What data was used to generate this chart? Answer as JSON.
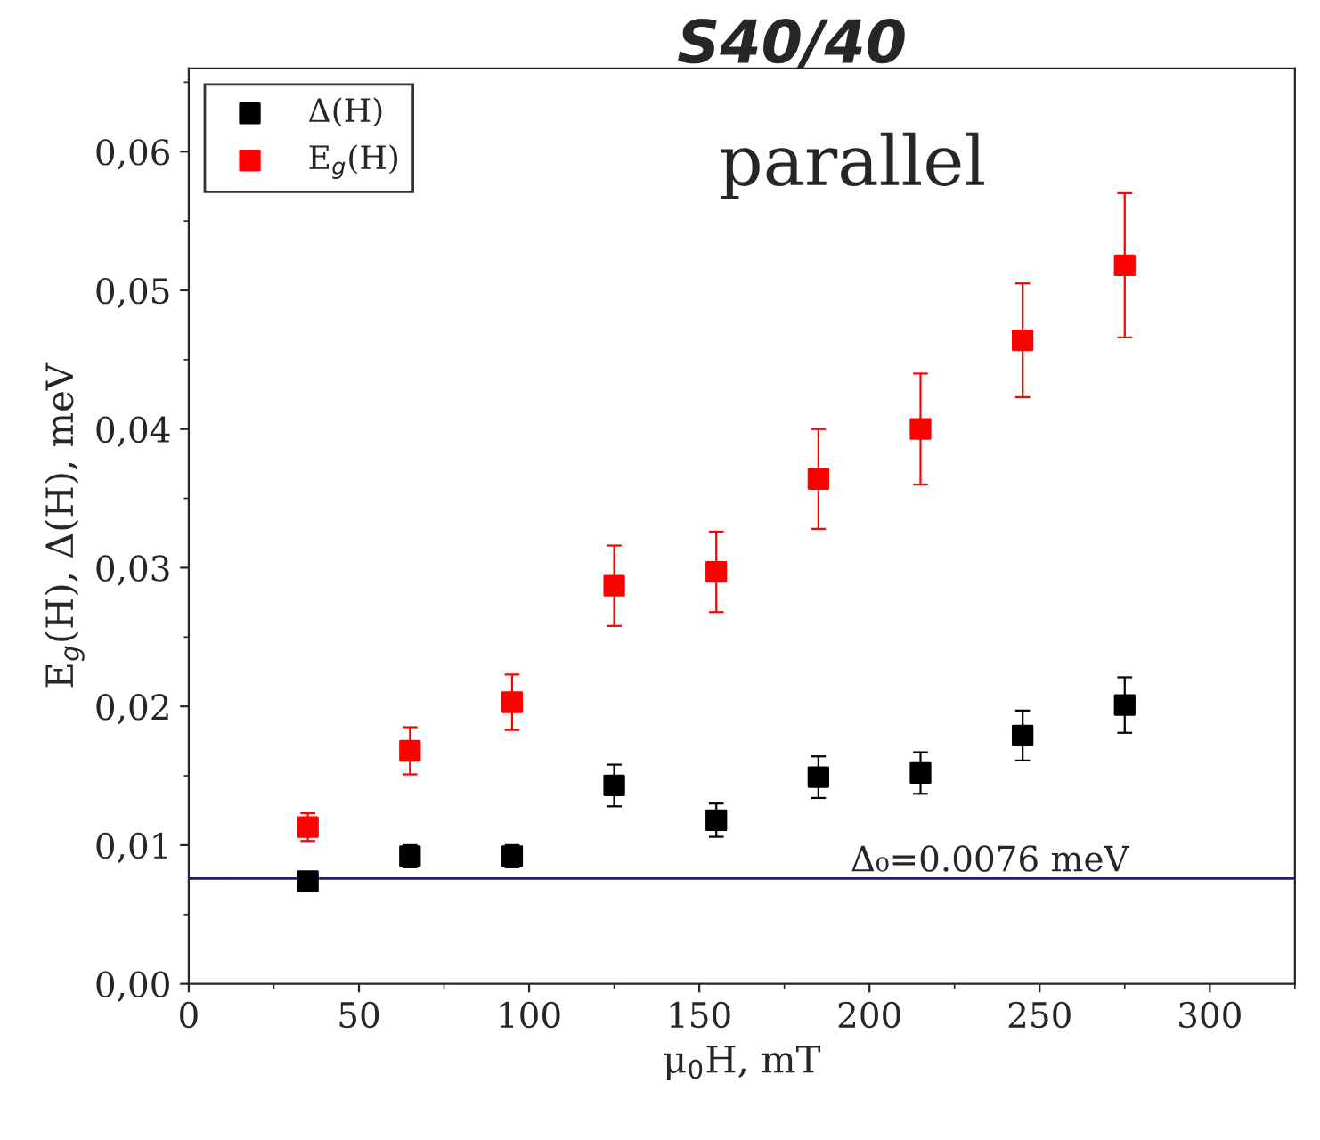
{
  "chart_data": {
    "type": "scatter",
    "title": "S40/40",
    "xlabel": "μ$_{0}$H, mT",
    "ylabel": "E$_{g}$(H), Δ(H), meV",
    "annotations": [
      "parallel"
    ],
    "x": [
      35,
      65,
      95,
      125,
      155,
      185,
      215,
      245,
      275
    ],
    "series": [
      {
        "name": "Δ(H)",
        "color": "#000000",
        "values": [
          0.0074,
          0.0092,
          0.0092,
          0.0143,
          0.0118,
          0.0149,
          0.0152,
          0.0179,
          0.0201
        ],
        "errors": [
          0.0005,
          0.0008,
          0.0008,
          0.0015,
          0.0012,
          0.0015,
          0.0015,
          0.0018,
          0.002
        ]
      },
      {
        "name": "E$_{g}$(H)",
        "color": "#ff0000",
        "values": [
          0.0113,
          0.0168,
          0.0203,
          0.0287,
          0.0297,
          0.0364,
          0.04,
          0.0464,
          0.0518
        ],
        "errors": [
          0.001,
          0.0017,
          0.002,
          0.0029,
          0.0029,
          0.0036,
          0.004,
          0.0041,
          0.0052
        ]
      }
    ],
    "ref_lines": [
      {
        "axis": "y",
        "value": 0.0076,
        "label": "Δ₀=0.0076 meV",
        "color": "#1a1a8c"
      }
    ],
    "xlim": [
      0,
      325
    ],
    "xticks": [
      0,
      50,
      100,
      150,
      200,
      250,
      300
    ],
    "ylim": [
      0,
      0.066
    ],
    "yticks": [
      {
        "value": 0,
        "label": "0,00"
      },
      {
        "value": 0.01,
        "label": "0,01"
      },
      {
        "value": 0.02,
        "label": "0,02"
      },
      {
        "value": 0.03,
        "label": "0,03"
      },
      {
        "value": 0.04,
        "label": "0,04"
      },
      {
        "value": 0.05,
        "label": "0,05"
      },
      {
        "value": 0.06,
        "label": "0,06"
      }
    ],
    "legend": "top left",
    "marker": "square",
    "grid": false
  }
}
